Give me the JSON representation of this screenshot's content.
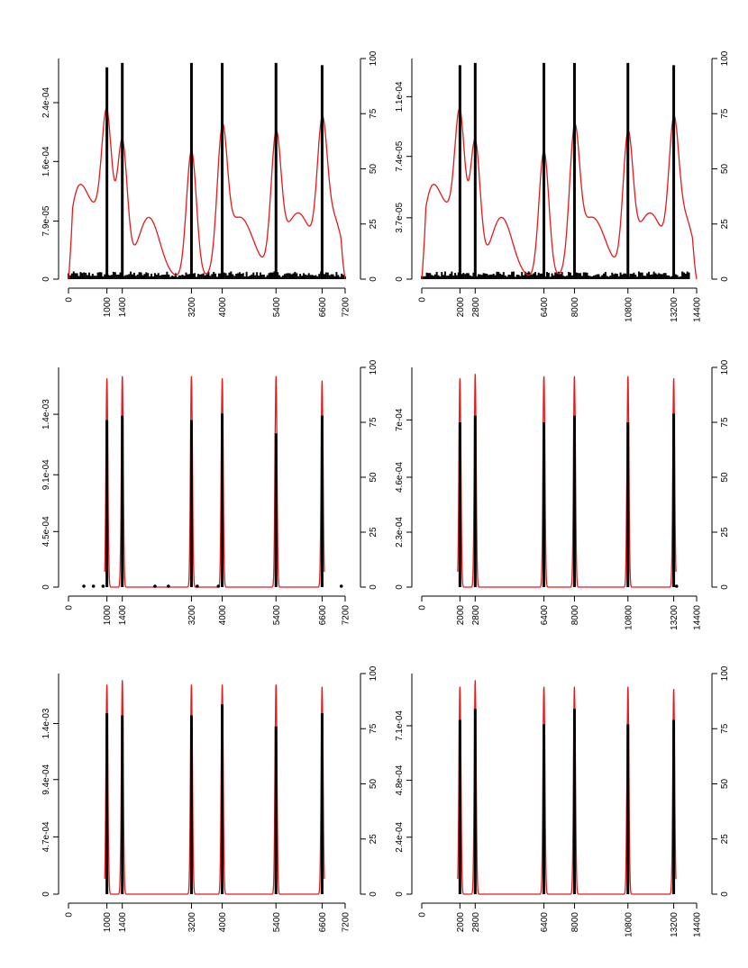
{
  "chart_data": [
    {
      "id": "top-left",
      "type": "line",
      "x_ticks": [
        "0",
        "1000",
        "1400",
        "3200",
        "4000",
        "5400",
        "6600",
        "7200"
      ],
      "xlim": [
        0,
        7200
      ],
      "density_ticks": [
        "0",
        "7.9e-05",
        "1.6e-04",
        "2.4e-04"
      ],
      "density_tick_values": [
        0,
        7.9e-05,
        0.00016,
        0.00024
      ],
      "density_ylim": [
        0,
        0.0003
      ],
      "right_ticks": [
        "0",
        "25",
        "50",
        "75",
        "100"
      ],
      "right_ylim": [
        0,
        100
      ],
      "peaks_x": [
        1000,
        1400,
        3200,
        4000,
        5400,
        6600
      ],
      "peak_bar_heights": [
        96,
        98,
        98,
        98,
        98,
        97
      ],
      "noise": true,
      "noise_range": [
        0,
        7200
      ],
      "density_shape": "broad"
    },
    {
      "id": "top-right",
      "type": "line",
      "x_ticks": [
        "0",
        "2000",
        "2800",
        "6400",
        "8000",
        "10800",
        "13200",
        "14400"
      ],
      "xlim": [
        0,
        14400
      ],
      "density_ticks": [
        "0",
        "3.7e-05",
        "7.4e-05",
        "1.1e-04"
      ],
      "density_tick_values": [
        0,
        3.7e-05,
        7.4e-05,
        0.00011
      ],
      "density_ylim": [
        0,
        0.000133
      ],
      "right_ticks": [
        "0",
        "25",
        "50",
        "75",
        "100"
      ],
      "right_ylim": [
        0,
        100
      ],
      "peaks_x": [
        2000,
        2800,
        6400,
        8000,
        10800,
        13200
      ],
      "peak_bar_heights": [
        97,
        98,
        98,
        98,
        98,
        97
      ],
      "noise": true,
      "noise_range": [
        0,
        14000
      ],
      "density_shape": "broad"
    },
    {
      "id": "middle-left",
      "type": "line",
      "x_ticks": [
        "0",
        "1000",
        "1400",
        "3200",
        "4000",
        "5400",
        "6600",
        "7200"
      ],
      "xlim": [
        0,
        7200
      ],
      "density_ticks": [
        "0",
        "4.5e-04",
        "9.1e-04",
        "1.4e-03"
      ],
      "density_tick_values": [
        0,
        0.00045,
        0.00091,
        0.0014
      ],
      "density_ylim": [
        0,
        0.00178
      ],
      "right_ticks": [
        "0",
        "25",
        "50",
        "75",
        "100"
      ],
      "right_ylim": [
        0,
        100
      ],
      "peaks_x": [
        1000,
        1400,
        3200,
        4000,
        5400,
        6600
      ],
      "peak_bar_heights": [
        76,
        78,
        76,
        79,
        70,
        78
      ],
      "peak_density_heights": [
        95,
        96,
        96,
        95,
        96,
        94
      ],
      "small_points_x": [
        400,
        650,
        900,
        2250,
        2600,
        3350,
        3900,
        7100
      ],
      "density_shape": "narrow"
    },
    {
      "id": "middle-right",
      "type": "line",
      "x_ticks": [
        "0",
        "2000",
        "2800",
        "6400",
        "8000",
        "10800",
        "13200",
        "14400"
      ],
      "xlim": [
        0,
        14400
      ],
      "density_ticks": [
        "0",
        "2.3e-04",
        "4.6e-04",
        "7e-04"
      ],
      "density_tick_values": [
        0,
        0.00023,
        0.00046,
        0.0007
      ],
      "density_ylim": [
        0,
        0.00092
      ],
      "right_ticks": [
        "0",
        "25",
        "50",
        "75",
        "100"
      ],
      "right_ylim": [
        0,
        100
      ],
      "peaks_x": [
        2000,
        2800,
        6400,
        8000,
        10800,
        13200
      ],
      "peak_bar_heights": [
        75,
        78,
        75,
        78,
        75,
        79
      ],
      "peak_density_heights": [
        95,
        97,
        96,
        96,
        96,
        95
      ],
      "small_points_x": [
        13350
      ],
      "density_shape": "narrow"
    },
    {
      "id": "bottom-left",
      "type": "line",
      "x_ticks": [
        "0",
        "1000",
        "1400",
        "3200",
        "4000",
        "5400",
        "6600",
        "7200"
      ],
      "xlim": [
        0,
        7200
      ],
      "density_ticks": [
        "0",
        "4.7e-04",
        "9.4e-04",
        "1.4e-03"
      ],
      "density_tick_values": [
        0,
        0.00047,
        0.00094,
        0.0014
      ],
      "density_ylim": [
        0,
        0.00181
      ],
      "right_ticks": [
        "0",
        "25",
        "50",
        "75",
        "100"
      ],
      "right_ylim": [
        0,
        100
      ],
      "peaks_x": [
        1000,
        1400,
        3200,
        4000,
        5400,
        6600
      ],
      "peak_bar_heights": [
        82,
        81,
        81,
        86,
        76,
        82
      ],
      "peak_density_heights": [
        95,
        97,
        95,
        95,
        95,
        94
      ],
      "density_shape": "narrow"
    },
    {
      "id": "bottom-right",
      "type": "line",
      "x_ticks": [
        "0",
        "2000",
        "2800",
        "6400",
        "8000",
        "10800",
        "13200",
        "14400"
      ],
      "xlim": [
        0,
        14400
      ],
      "density_ticks": [
        "0",
        "2.4e-04",
        "4.8e-04",
        "7.1e-04"
      ],
      "density_tick_values": [
        0,
        0.00024,
        0.00048,
        0.00071
      ],
      "density_ylim": [
        0,
        0.00093
      ],
      "right_ticks": [
        "0",
        "25",
        "50",
        "75",
        "100"
      ],
      "right_ylim": [
        0,
        100
      ],
      "peaks_x": [
        2000,
        2800,
        6400,
        8000,
        10800,
        13200
      ],
      "peak_bar_heights": [
        79,
        84,
        77,
        84,
        77,
        79
      ],
      "peak_density_heights": [
        94,
        97,
        94,
        94,
        94,
        93
      ],
      "density_shape": "narrow"
    }
  ],
  "colors": {
    "density": "#e41a1c",
    "bars": "#000000",
    "axes": "#000000"
  }
}
